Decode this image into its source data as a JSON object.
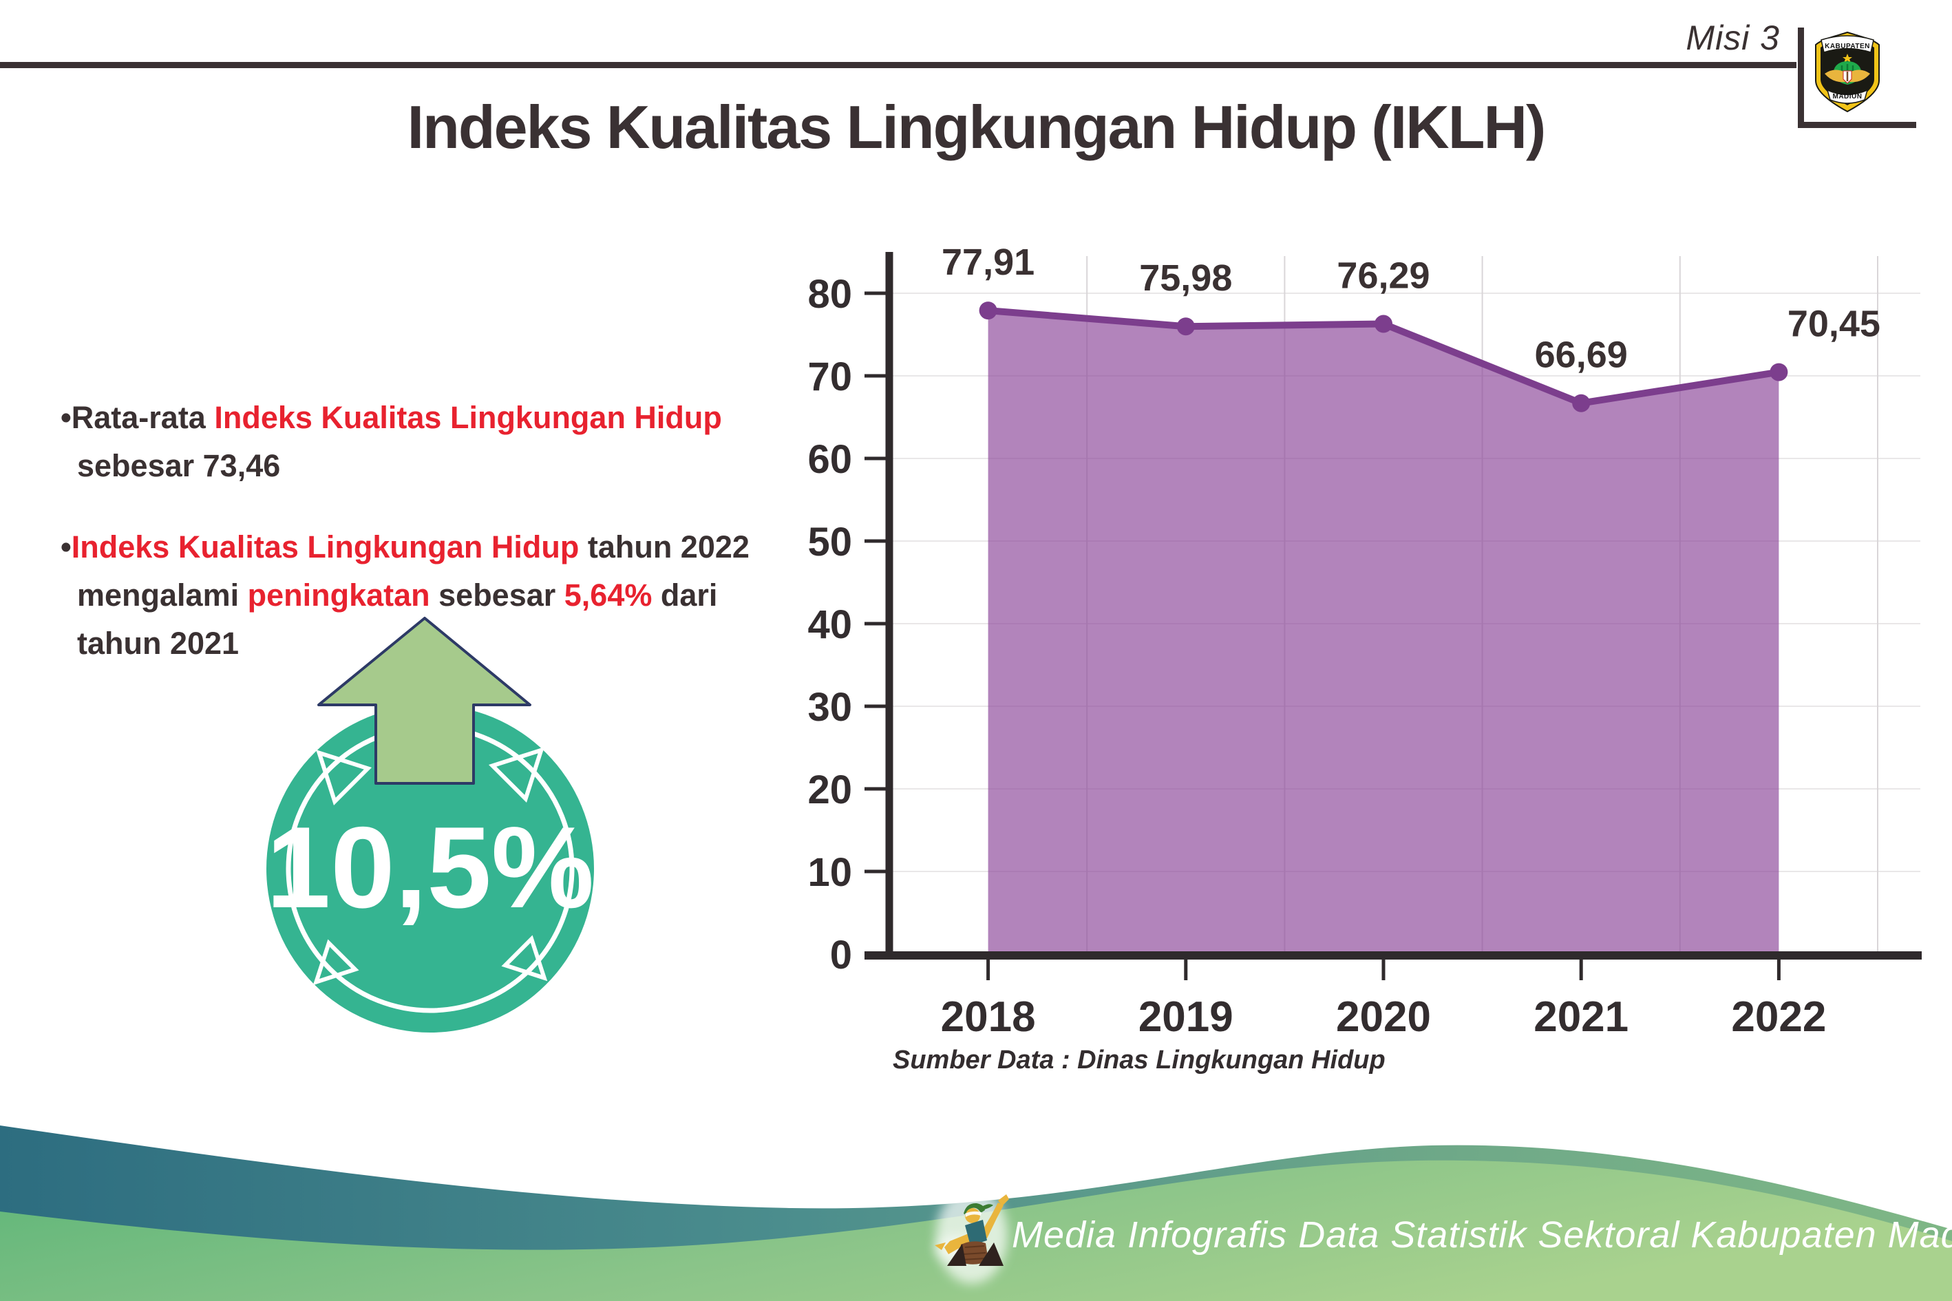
{
  "header": {
    "misi_label": "Misi 3",
    "logo": {
      "top_text": "KABUPATEN",
      "bottom_text": "MADIUN"
    }
  },
  "title": "Indeks Kualitas Lingkungan Hidup (IKLH)",
  "insights": {
    "bullet1": {
      "marker": "•",
      "dark1": "Rata-rata ",
      "red1": "Indeks Kualitas Lingkungan Hidup",
      "line2": "sebesar 73,46"
    },
    "bullet2": {
      "marker": "•",
      "red1": "Indeks Kualitas Lingkungan Hidup",
      "dark1": " tahun 2022",
      "line2_dark1": "mengalami ",
      "line2_red1": "peningkatan",
      "line2_dark2": " sebesar ",
      "line2_red2": "5,64%",
      "line2_dark3": " dari",
      "line3": "tahun 2021"
    }
  },
  "badge": {
    "value": "10,5%"
  },
  "chart_data": {
    "type": "area",
    "title": "",
    "xlabel": "",
    "ylabel": "",
    "categories": [
      "2018",
      "2019",
      "2020",
      "2021",
      "2022"
    ],
    "values": [
      77.91,
      75.98,
      76.29,
      66.69,
      70.45
    ],
    "value_labels": [
      "77,91",
      "75,98",
      "76,29",
      "66,69",
      "70,45"
    ],
    "ylim": [
      0,
      80
    ],
    "ytick_step": 10,
    "yticks": [
      0,
      10,
      20,
      30,
      40,
      50,
      60,
      70,
      80
    ],
    "grid": true,
    "legend_position": "none",
    "line_color": "#7c3e8d",
    "fill_color": "#8e4a9b",
    "label_color": "#3a3132",
    "source_note": "Sumber Data : Dinas Lingkungan Hidup"
  },
  "footer": {
    "credit": "Media Infografis Data Statistik Sektoral Kabupaten Madiun |"
  },
  "colors": {
    "text_dark": "#3a3132",
    "accent_red": "#e8222f",
    "badge_teal": "#35b491",
    "arrow_green": "#a6ca8c",
    "wave_teal": "#2d6d80",
    "wave_green": "#8ac489"
  }
}
